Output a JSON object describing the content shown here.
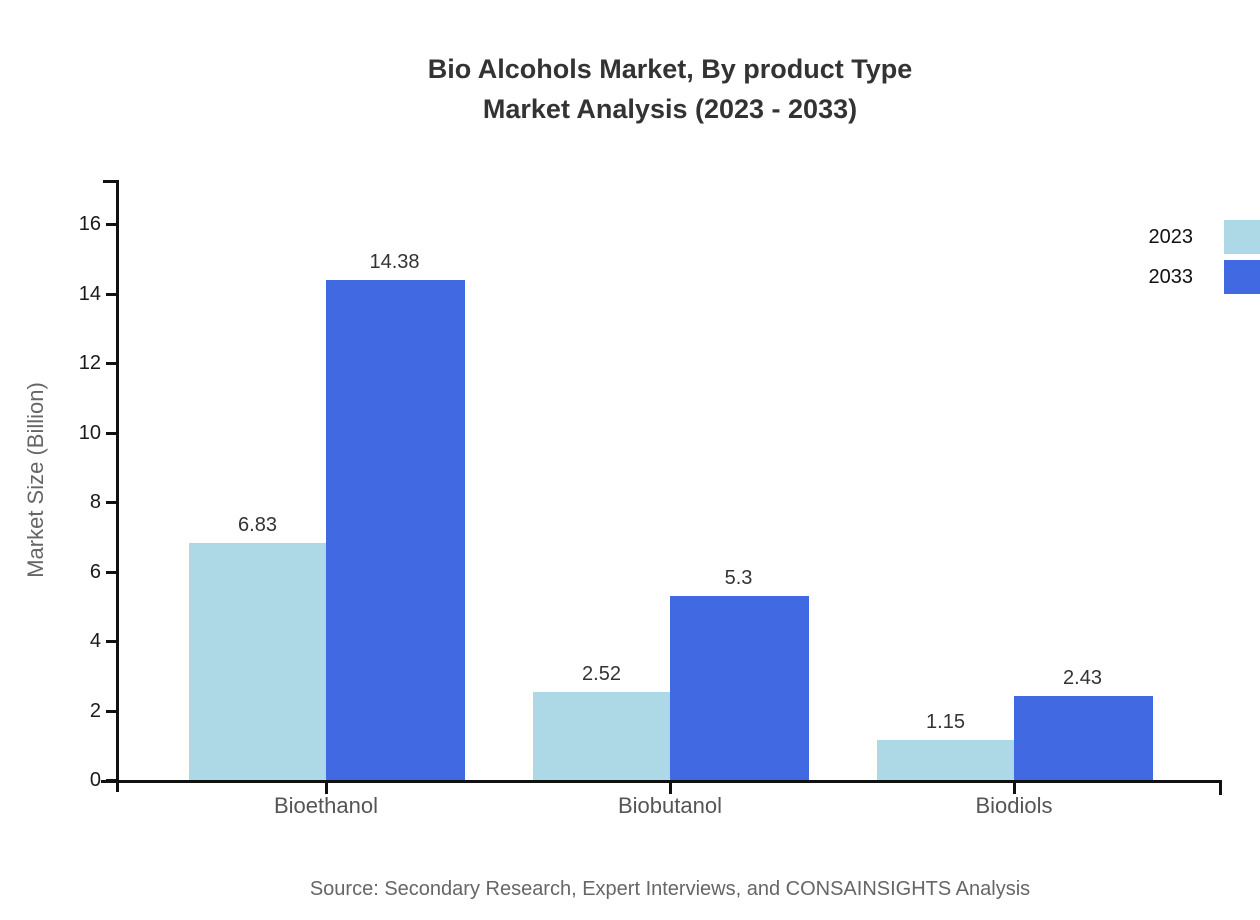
{
  "title": {
    "line1": "Bio Alcohols Market, By product Type",
    "line2": "Market Analysis (2023 - 2033)"
  },
  "source": "Source: Secondary Research, Expert Interviews, and CONSAINSIGHTS Analysis",
  "colors": {
    "axis": "#111111",
    "title_text": "#333333",
    "value_label_text": "#333333",
    "category_text": "#555555",
    "muted_text": "#666666",
    "series_2023": "#ADD8E6",
    "series_2033": "#4169E1"
  },
  "chart_data": {
    "type": "bar",
    "title": "Bio Alcohols Market, By product Type — Market Analysis (2023 - 2033)",
    "categories": [
      "Bioethanol",
      "Biobutanol",
      "Biodiols"
    ],
    "series": [
      {
        "name": "2023",
        "color": "#ADD8E6",
        "values": [
          6.83,
          2.52,
          1.15
        ]
      },
      {
        "name": "2033",
        "color": "#4169E1",
        "values": [
          14.38,
          5.3,
          2.43
        ]
      }
    ],
    "value_labels": {
      "2023": [
        "6.83",
        "2.52",
        "1.15"
      ],
      "2033": [
        "14.38",
        "5.3",
        "2.43"
      ]
    },
    "xlabel": "",
    "ylabel": "Market Size (Billion)",
    "ylim": [
      0,
      16
    ],
    "ytick_step": 2,
    "yticks": [
      0,
      2,
      4,
      6,
      8,
      10,
      12,
      14,
      16
    ],
    "grid": false,
    "legend_position": "top-right"
  }
}
